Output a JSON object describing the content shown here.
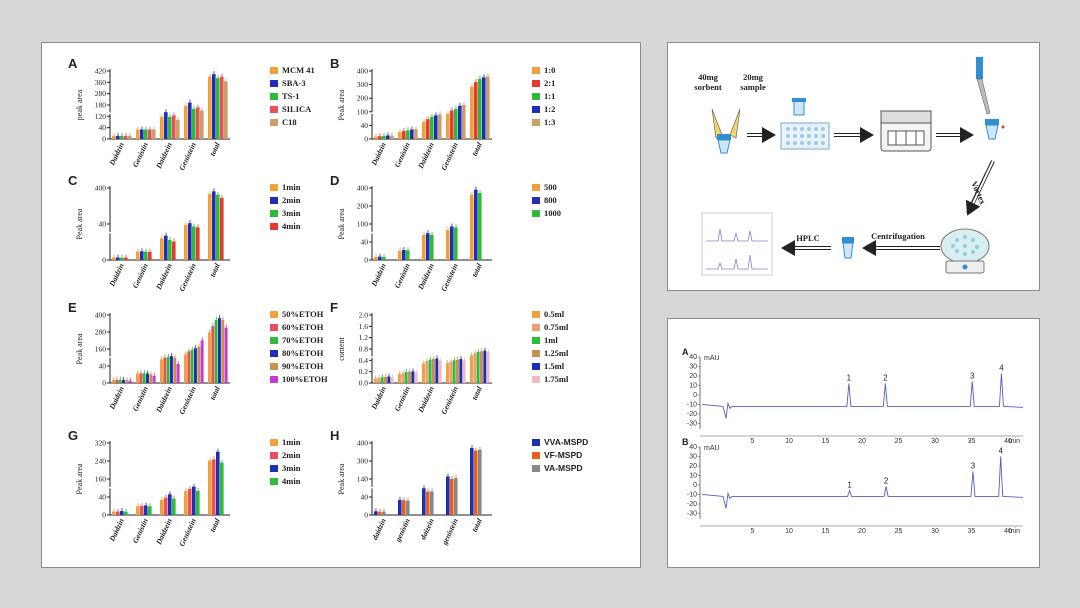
{
  "chart_data": [
    {
      "panel": "A",
      "type": "bar",
      "ylabel": "peak area",
      "yticks": [
        "420",
        "360",
        "280",
        "180",
        "120",
        "40",
        "0"
      ],
      "categories": [
        "Daidzin",
        "Genistin",
        "Daidzein",
        "Genistein",
        "total"
      ],
      "series": [
        {
          "name": "MCM 41",
          "color": "#f2a03c",
          "values": [
            20,
            60,
            140,
            210,
            395
          ]
        },
        {
          "name": "SBA-3",
          "color": "#1c2fb5",
          "values": [
            20,
            60,
            170,
            230,
            410
          ]
        },
        {
          "name": "TS-1",
          "color": "#2dbb3a",
          "values": [
            20,
            60,
            140,
            190,
            385
          ]
        },
        {
          "name": "SILICA",
          "color": "#e8515a",
          "values": [
            20,
            60,
            150,
            200,
            395
          ]
        },
        {
          "name": "C18",
          "color": "#c9a06a",
          "values": [
            20,
            60,
            120,
            180,
            365
          ]
        }
      ]
    },
    {
      "panel": "B",
      "type": "bar",
      "ylabel": "Peak area",
      "yticks": [
        "400",
        "300",
        "200",
        "100",
        "40",
        "0"
      ],
      "categories": [
        "Daidzin",
        "Genistin",
        "Daidzein",
        "Genistein",
        "total"
      ],
      "series": [
        {
          "name": "1:0",
          "color": "#f2a03c",
          "values": [
            15,
            45,
            110,
            160,
            330
          ]
        },
        {
          "name": "2:1",
          "color": "#e23b2f",
          "values": [
            18,
            50,
            125,
            180,
            360
          ]
        },
        {
          "name": "1:1",
          "color": "#2dbb3a",
          "values": [
            20,
            55,
            140,
            190,
            380
          ]
        },
        {
          "name": "1:2",
          "color": "#1c2fb5",
          "values": [
            22,
            60,
            150,
            210,
            390
          ]
        },
        {
          "name": "1:3",
          "color": "#c9a06a",
          "values": [
            22,
            62,
            155,
            215,
            395
          ]
        }
      ]
    },
    {
      "panel": "C",
      "type": "bar",
      "ylabel": "Peak area",
      "yticks": [
        "400",
        "40",
        "0"
      ],
      "categories": [
        "Daidzin",
        "Genistin",
        "Daidzein",
        "Genistein",
        "total"
      ],
      "series": [
        {
          "name": "1min",
          "color": "#f2a03c",
          "values": [
            15,
            50,
            130,
            210,
            395
          ]
        },
        {
          "name": "2min",
          "color": "#1c2fb5",
          "values": [
            15,
            52,
            145,
            220,
            410
          ]
        },
        {
          "name": "3min",
          "color": "#2dbb3a",
          "values": [
            14,
            50,
            120,
            200,
            390
          ]
        },
        {
          "name": "4min",
          "color": "#e23b2f",
          "values": [
            14,
            48,
            110,
            195,
            370
          ]
        }
      ]
    },
    {
      "panel": "D",
      "type": "bar",
      "ylabel": "Peak area",
      "yticks": [
        "400",
        "200",
        "100",
        "40",
        "0"
      ],
      "categories": [
        "Daidzin",
        "Genistin",
        "Daidzein",
        "Genistein",
        "total"
      ],
      "series": [
        {
          "name": "500",
          "color": "#f2a03c",
          "values": [
            18,
            55,
            150,
            180,
            390
          ]
        },
        {
          "name": "800",
          "color": "#1c2fb5",
          "values": [
            20,
            60,
            160,
            200,
            420
          ]
        },
        {
          "name": "1000",
          "color": "#2dbb3a",
          "values": [
            18,
            58,
            150,
            195,
            400
          ]
        }
      ]
    },
    {
      "panel": "E",
      "type": "bar",
      "ylabel": "Peak area",
      "yticks": [
        "400",
        "280",
        "160",
        "40",
        "0"
      ],
      "categories": [
        "Daidzin",
        "Genistin",
        "Daidzein",
        "Genistein",
        "total"
      ],
      "series": [
        {
          "name": "50%ETOH",
          "color": "#f2a03c",
          "values": [
            20,
            60,
            150,
            180,
            320
          ]
        },
        {
          "name": "60%ETOH",
          "color": "#e8515a",
          "values": [
            20,
            60,
            160,
            200,
            360
          ]
        },
        {
          "name": "70%ETOH",
          "color": "#2dbb3a",
          "values": [
            20,
            62,
            165,
            210,
            400
          ]
        },
        {
          "name": "80%ETOH",
          "color": "#1c2fb5",
          "values": [
            20,
            60,
            170,
            220,
            410
          ]
        },
        {
          "name": "90%ETOH",
          "color": "#c99050",
          "values": [
            18,
            55,
            160,
            230,
            400
          ]
        },
        {
          "name": "100%ETOH",
          "color": "#c43bd3",
          "values": [
            15,
            45,
            120,
            270,
            350
          ]
        }
      ]
    },
    {
      "panel": "F",
      "type": "bar",
      "ylabel": "content",
      "yticks": [
        "2.0",
        "1.6",
        "1.2",
        "0.8",
        "0.4",
        "0.2",
        "0.0"
      ],
      "categories": [
        "Daidzin",
        "Genistin",
        "Daidzein",
        "Genistein",
        "total"
      ],
      "series": [
        {
          "name": "0.5ml",
          "color": "#f2a03c",
          "values": [
            0.14,
            0.28,
            0.6,
            0.62,
            0.85
          ]
        },
        {
          "name": "0.75ml",
          "color": "#e8a07a",
          "values": [
            0.16,
            0.3,
            0.68,
            0.66,
            0.92
          ]
        },
        {
          "name": "1ml",
          "color": "#2dbb3a",
          "values": [
            0.18,
            0.34,
            0.72,
            0.7,
            0.96
          ]
        },
        {
          "name": "1.25ml",
          "color": "#c99050",
          "values": [
            0.19,
            0.35,
            0.74,
            0.72,
            0.98
          ]
        },
        {
          "name": "1.5ml",
          "color": "#1c2fb5",
          "values": [
            0.2,
            0.36,
            0.76,
            0.74,
            1.0
          ]
        },
        {
          "name": "1.75ml",
          "color": "#f1b8c0",
          "values": [
            0.18,
            0.33,
            0.7,
            0.69,
            0.95
          ]
        }
      ]
    },
    {
      "panel": "G",
      "type": "bar",
      "ylabel": "Peak area",
      "yticks": [
        "320",
        "240",
        "160",
        "40",
        "0"
      ],
      "categories": [
        "Daidzin",
        "Genistin",
        "Daidzein",
        "Genistein",
        "total"
      ],
      "series": [
        {
          "name": "1min",
          "color": "#f2a03c",
          "values": [
            15,
            40,
            70,
            110,
            250
          ]
        },
        {
          "name": "2min",
          "color": "#e8515a",
          "values": [
            16,
            42,
            80,
            120,
            255
          ]
        },
        {
          "name": "3min",
          "color": "#1c2fb5",
          "values": [
            18,
            44,
            95,
            130,
            290
          ]
        },
        {
          "name": "4min",
          "color": "#2dbb3a",
          "values": [
            15,
            40,
            75,
            110,
            240
          ]
        }
      ]
    },
    {
      "panel": "H",
      "type": "bar",
      "ylabel": "Peak area",
      "yticks": [
        "400",
        "300",
        "140",
        "40",
        "0"
      ],
      "categories": [
        "daidzin",
        "genistin",
        "daizein",
        "genistein",
        "total"
      ],
      "series": [
        {
          "name": "VVA-MSPD",
          "color": "#1c2fb5",
          "values": [
            22,
            90,
            160,
            230,
            400
          ]
        },
        {
          "name": "VF-MSPD",
          "color": "#e8601c",
          "values": [
            20,
            88,
            140,
            215,
            385
          ]
        },
        {
          "name": "VA-MSPD",
          "color": "#888888",
          "values": [
            20,
            86,
            140,
            220,
            390
          ]
        }
      ]
    },
    {
      "panel": "HPLC",
      "type": "line",
      "chromatograms": [
        {
          "label": "A",
          "yticks": [
            "40",
            "30",
            "20",
            "10",
            "0",
            "-10",
            "-20",
            "-30"
          ],
          "peaks": [
            {
              "label": "1",
              "time": 18.2,
              "height": 23
            },
            {
              "label": "2",
              "time": 23.2,
              "height": 23
            },
            {
              "label": "3",
              "time": 35.1,
              "height": 25
            },
            {
              "label": "4",
              "time": 39.1,
              "height": 33
            }
          ]
        },
        {
          "label": "B",
          "yticks": [
            "40",
            "30",
            "20",
            "10",
            "0",
            "-10",
            "-20",
            "-30"
          ],
          "peaks": [
            {
              "label": "1",
              "time": 18.3,
              "height": 6
            },
            {
              "label": "2",
              "time": 23.3,
              "height": 10
            },
            {
              "label": "3",
              "time": 35.2,
              "height": 25
            },
            {
              "label": "4",
              "time": 39.0,
              "height": 40
            }
          ]
        }
      ],
      "xticks": [
        "5",
        "10",
        "15",
        "20",
        "25",
        "30",
        "35",
        "40"
      ],
      "x_unit": "min",
      "y_unit": "mAU"
    }
  ],
  "flow": {
    "sorbent_label": "40mg\nsorbent",
    "sample_label": "20mg\nsample",
    "vortex_label": "Vortex",
    "centrifugation_label": "Centrifugation",
    "hplc_label": "HPLC"
  }
}
